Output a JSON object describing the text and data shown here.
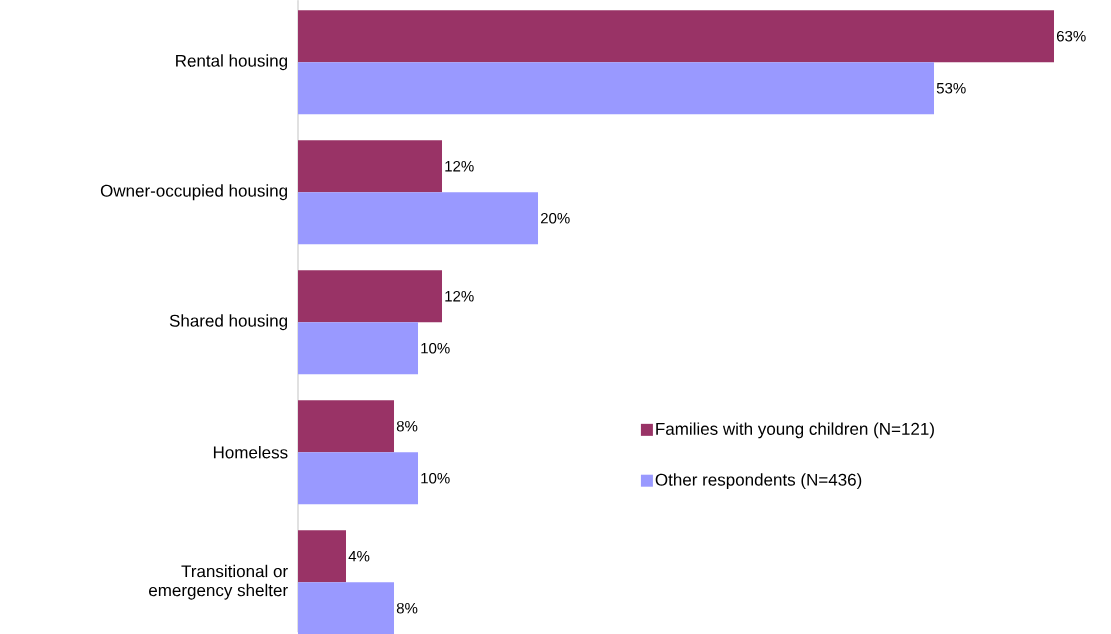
{
  "chart_data": {
    "type": "bar",
    "orientation": "horizontal",
    "categories": [
      "Rental housing",
      "Owner-occupied housing",
      "Shared housing",
      "Homeless",
      "Transitional or emergency shelter"
    ],
    "series": [
      {
        "name": "Families with young children (N=121)",
        "color": "#993366",
        "values": [
          63,
          12,
          12,
          8,
          4
        ],
        "value_labels": [
          "63%",
          "12%",
          "12%",
          "8%",
          "4%"
        ]
      },
      {
        "name": "Other respondents (N=436)",
        "color": "#9999ff",
        "values": [
          53,
          20,
          10,
          10,
          8
        ],
        "value_labels": [
          "53%",
          "20%",
          "10%",
          "10%",
          "8%"
        ]
      }
    ],
    "legend": "right"
  }
}
